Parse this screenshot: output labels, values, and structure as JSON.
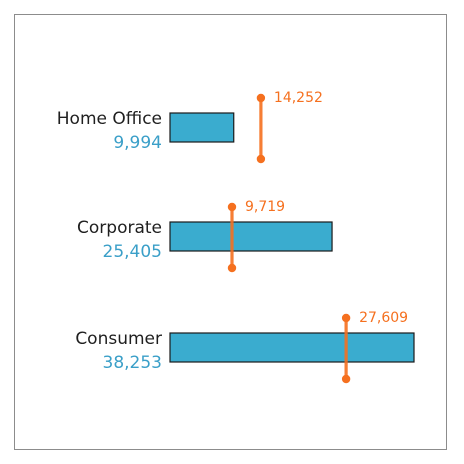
{
  "chart_data": {
    "type": "bar",
    "categories": [
      "Home Office",
      "Corporate",
      "Consumer"
    ],
    "values": [
      9994,
      25405,
      38253
    ],
    "value_labels": [
      "9,994",
      "25,405",
      "38,253"
    ],
    "targets": [
      14252,
      9719,
      27609
    ],
    "target_labels": [
      "14,252",
      "9,719",
      "27,609"
    ],
    "bar_color": "#3aaccf",
    "bar_outline": "#1a1a1a",
    "value_text_color": "#3a9fc8",
    "target_color": "#f5701f",
    "xlim": [
      0,
      38253
    ],
    "grid": false,
    "title": "",
    "xlabel": "",
    "ylabel": ""
  }
}
